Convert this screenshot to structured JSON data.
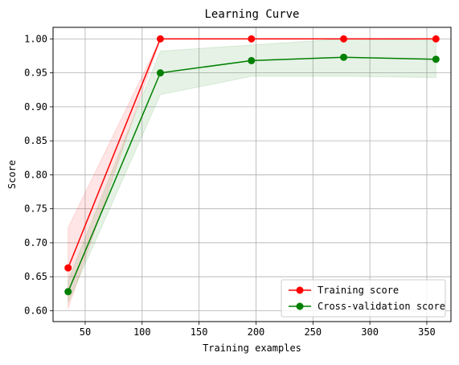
{
  "chart_data": {
    "type": "line",
    "title": "Learning Curve",
    "xlabel": "Training examples",
    "ylabel": "Score",
    "xlim": [
      21.8,
      371.2
    ],
    "ylim": [
      0.584,
      1.017
    ],
    "xticks": [
      50,
      100,
      150,
      200,
      250,
      300,
      350
    ],
    "yticks": [
      0.6,
      0.65,
      0.7,
      0.75,
      0.8,
      0.85,
      0.9,
      0.95,
      1.0
    ],
    "grid": true,
    "legend_position": "lower-right",
    "x": [
      35,
      116,
      196,
      277,
      358
    ],
    "series": [
      {
        "name": "Training score",
        "color": "#ff0000",
        "fill_color": "#ff0000",
        "values": [
          0.663,
          1.0,
          1.0,
          1.0,
          1.0
        ],
        "band_lower": [
          0.603,
          1.0,
          1.0,
          1.0,
          1.0
        ],
        "band_upper": [
          0.722,
          1.0,
          1.0,
          1.0,
          1.0
        ]
      },
      {
        "name": "Cross-validation score",
        "color": "#008000",
        "fill_color": "#008000",
        "values": [
          0.628,
          0.95,
          0.968,
          0.973,
          0.97
        ],
        "band_lower": [
          0.612,
          0.918,
          0.945,
          0.945,
          0.943
        ],
        "band_upper": [
          0.644,
          0.982,
          0.991,
          1.0,
          0.998
        ]
      }
    ]
  }
}
